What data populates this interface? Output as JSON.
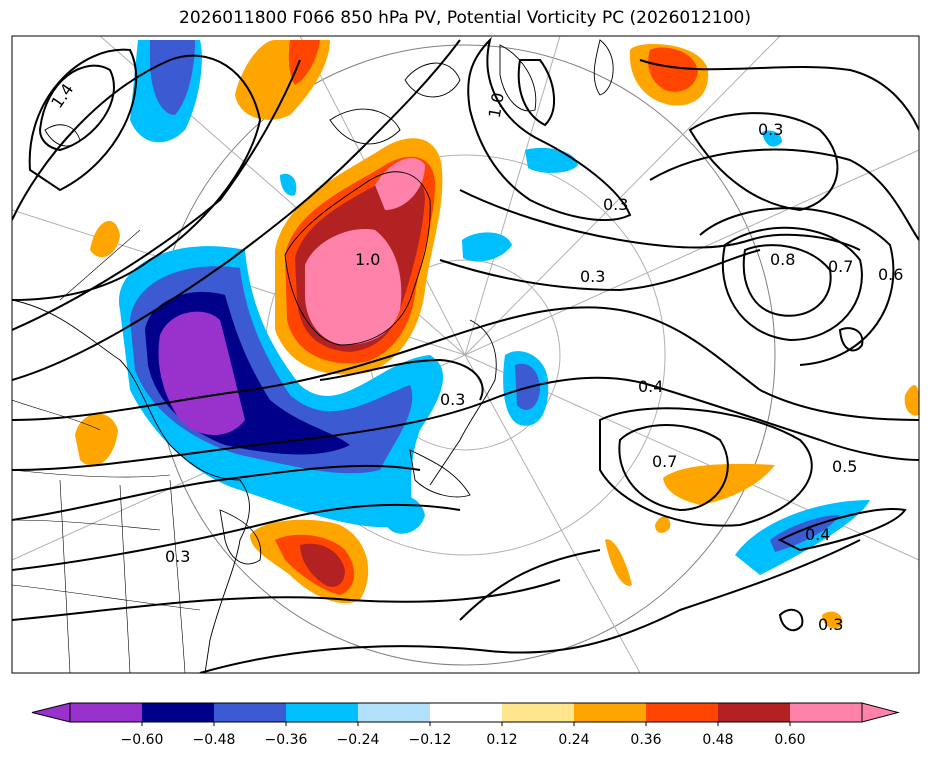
{
  "title": "2026011800 F066 850 hPa PV, Potential Vorticity PC (2026012100)",
  "contour_labels": [
    "1.4",
    "1.0",
    "1.0",
    "0.3",
    "0.3",
    "0.3",
    "0.8",
    "0.7",
    "0.6",
    "0.4",
    "0.7",
    "0.5",
    "0.4",
    "0.3",
    "0.3",
    "0.3"
  ],
  "colorbar": {
    "ticks": [
      "−0.60",
      "−0.48",
      "−0.36",
      "−0.24",
      "−0.12",
      "0.12",
      "0.24",
      "0.36",
      "0.48",
      "0.60"
    ],
    "colors": [
      "#9932cc",
      "#00008b",
      "#3c5ad2",
      "#00bfff",
      "#b0e0fa",
      "#ffffff",
      "#ffe68c",
      "#ffa500",
      "#ff4500",
      "#b22222",
      "#ff82aa"
    ]
  },
  "palette": {
    "purple": "#9932cc",
    "navy": "#00008b",
    "royal": "#3c5ad2",
    "cyan": "#00bfff",
    "lightblue": "#b0e0fa",
    "yellow": "#ffe68c",
    "orange": "#ffa500",
    "red": "#ff4500",
    "darkred": "#b22222",
    "pink": "#ff82aa"
  }
}
